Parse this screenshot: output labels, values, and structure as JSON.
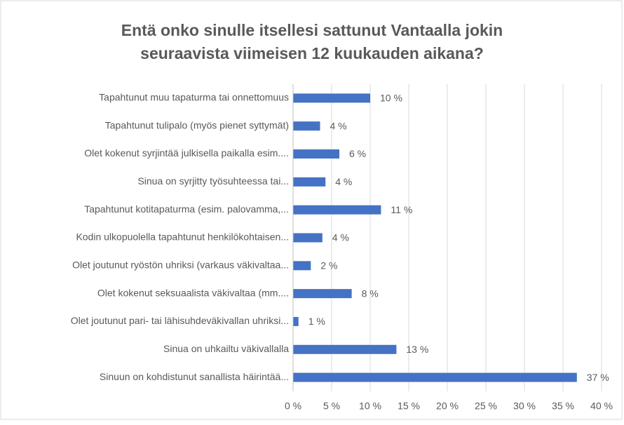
{
  "chart_data": {
    "type": "bar",
    "orientation": "horizontal",
    "title": [
      "Entä onko sinulle itsellesi sattunut Vantaalla jokin",
      "seuraavista viimeisen 12 kuukauden aikana?"
    ],
    "categories": [
      "Tapahtunut muu tapaturma tai onnettomuus",
      "Tapahtunut tulipalo (myös pienet syttymät)",
      "Olet kokenut syrjintää julkisella paikalla esim....",
      "Sinua on syrjitty työsuhteessa tai...",
      "Tapahtunut kotitapaturma (esim. palovamma,...",
      "Kodin ulkopuolella tapahtunut henkilökohtaisen...",
      "Olet joutunut ryöstön uhriksi (varkaus väkivaltaa...",
      "Olet kokenut seksuaalista väkivaltaa (mm....",
      "Olet joutunut pari- tai lähisuhdeväkivallan uhriksi...",
      "Sinua on uhkailtu väkivallalla",
      "Sinuun on kohdistunut sanallista häirintää..."
    ],
    "values": [
      10.0,
      3.5,
      6.0,
      4.2,
      11.4,
      3.8,
      2.3,
      7.6,
      0.7,
      13.4,
      36.8
    ],
    "value_labels": [
      "10 %",
      "4 %",
      "6 %",
      "4 %",
      "11 %",
      "4 %",
      "2 %",
      "8 %",
      "1 %",
      "13 %",
      "37 %"
    ],
    "color": "#4472c4",
    "xlim": [
      0,
      40
    ],
    "xticks": [
      {
        "value": 0,
        "label": "0 %"
      },
      {
        "value": 5,
        "label": "5 %"
      },
      {
        "value": 10,
        "label": "10 %"
      },
      {
        "value": 15,
        "label": "15 %"
      },
      {
        "value": 20,
        "label": "20 %"
      },
      {
        "value": 25,
        "label": "25 %"
      },
      {
        "value": 30,
        "label": "30 %"
      },
      {
        "value": 35,
        "label": "35 %"
      },
      {
        "value": 40,
        "label": "40 %"
      }
    ],
    "grid": true
  }
}
